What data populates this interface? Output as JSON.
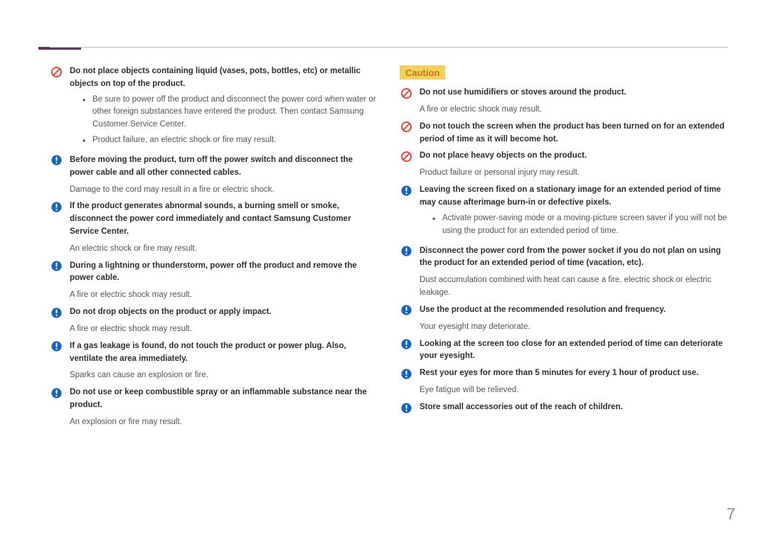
{
  "colors": {
    "prohibit": "#e03a2f",
    "mandatory": "#1464c8",
    "accent": "#5a3a57",
    "caution_bg": "#f4cf5c",
    "caution_fg": "#c27a17"
  },
  "page_number": "7",
  "caution_label": "Caution",
  "left": [
    {
      "icon": "prohibit",
      "bold": "Do not place objects containing liquid (vases, pots, bottles, etc) or metallic objects on top of the product.",
      "bullets": [
        "Be sure to power off the product and disconnect the power cord when water or other foreign substances have entered the product. Then contact Samsung Customer Service Center.",
        "Product failure, an electric shock or fire may result."
      ]
    },
    {
      "icon": "mandatory",
      "bold": "Before moving the product, turn off the power switch and disconnect the power cable and all other connected cables.",
      "sub": "Damage to the cord may result in a fire or electric shock."
    },
    {
      "icon": "mandatory",
      "bold": "If the product generates abnormal sounds, a burning smell or smoke, disconnect the power cord immediately and contact Samsung Customer Service Center.",
      "sub": "An electric shock or fire may result."
    },
    {
      "icon": "mandatory",
      "bold": "During a lightning or thunderstorm, power off the product and remove the power cable.",
      "sub": "A fire or electric shock may result."
    },
    {
      "icon": "mandatory",
      "bold": "Do not drop objects on the product or apply impact.",
      "sub": "A fire or electric shock may result."
    },
    {
      "icon": "mandatory",
      "bold": "If a gas leakage is found, do not touch the product or power plug. Also, ventilate the area immediately.",
      "sub": "Sparks can cause an explosion or fire."
    },
    {
      "icon": "mandatory",
      "bold": "Do not use or keep combustible spray or an inflammable substance near the product.",
      "sub": "An explosion or fire may result."
    }
  ],
  "right": [
    {
      "icon": "prohibit",
      "bold": "Do not use humidifiers or stoves around the product.",
      "sub": "A fire or electric shock may result."
    },
    {
      "icon": "prohibit",
      "bold": "Do not touch the screen when the product has been turned on for an extended period of time as it will become hot."
    },
    {
      "icon": "prohibit",
      "bold": "Do not place heavy objects on the product.",
      "sub": "Product failure or personal injury may result."
    },
    {
      "icon": "mandatory",
      "bold": "Leaving the screen fixed on a stationary image for an extended period of time may cause afterimage burn-in or defective pixels.",
      "bullets": [
        "Activate power-saving mode or a moving-picture screen saver if you will not be using the product for an extended period of time."
      ]
    },
    {
      "icon": "mandatory",
      "bold": "Disconnect the power cord from the power socket if you do not plan on using the product for an extended period of time (vacation, etc).",
      "sub": "Dust accumulation combined with heat can cause a fire, electric shock or electric leakage."
    },
    {
      "icon": "mandatory",
      "bold": "Use the product at the recommended resolution and frequency.",
      "sub": "Your eyesight may deteriorate."
    },
    {
      "icon": "mandatory",
      "bold": "Looking at the screen too close for an extended period of time can deteriorate your eyesight."
    },
    {
      "icon": "mandatory",
      "bold": "Rest your eyes for more than 5 minutes for every 1 hour of product use.",
      "sub": "Eye fatigue will be relieved."
    },
    {
      "icon": "mandatory",
      "bold": "Store small accessories out of the reach of children."
    }
  ]
}
